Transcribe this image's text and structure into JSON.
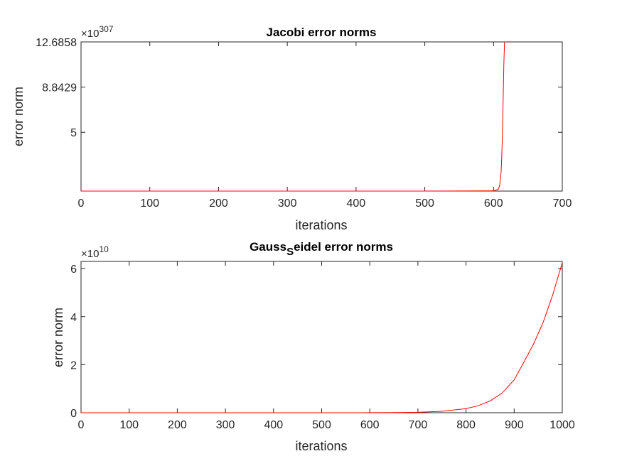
{
  "chart_data": [
    {
      "type": "line",
      "title": "Jacobi error norms",
      "xlabel": "iterations",
      "ylabel": "error norm",
      "exponent_label": "×10",
      "exponent": "307",
      "xlim": [
        0,
        700
      ],
      "ylim": [
        0,
        12.6858
      ],
      "x_ticks": [
        0,
        100,
        200,
        300,
        400,
        500,
        600,
        700
      ],
      "y_ticks": [
        5,
        8.8429,
        12.6858
      ],
      "y_tick_labels": [
        "5",
        "8.8429",
        "12.6858"
      ],
      "grid": false,
      "line_color": "#ff0000",
      "series": [
        {
          "x": [
            0,
            100,
            200,
            300,
            400,
            500,
            600,
            607,
            609,
            611,
            612,
            613,
            614,
            615,
            616
          ],
          "y": [
            0,
            0,
            0,
            0,
            0,
            0,
            0.02,
            0.15,
            0.5,
            1.6,
            3.0,
            5.0,
            7.8,
            10.8,
            12.6858
          ]
        }
      ]
    },
    {
      "type": "line",
      "title_main": "Gauss",
      "title_sub": "S",
      "title_rest": "eidel error norms",
      "xlabel": "iterations",
      "ylabel": "error norm",
      "exponent_label": "×10",
      "exponent": "10",
      "xlim": [
        0,
        1000
      ],
      "ylim": [
        0,
        6.3
      ],
      "x_ticks": [
        0,
        100,
        200,
        300,
        400,
        500,
        600,
        700,
        800,
        900,
        1000
      ],
      "y_ticks": [
        0,
        2,
        4,
        6
      ],
      "y_tick_labels": [
        "0",
        "2",
        "4",
        "6"
      ],
      "grid": false,
      "line_color": "#ff0000",
      "series": [
        {
          "x": [
            0,
            100,
            200,
            300,
            400,
            500,
            600,
            650,
            700,
            750,
            800,
            825,
            850,
            875,
            900,
            920,
            940,
            960,
            980,
            1000
          ],
          "y": [
            0,
            0,
            0,
            0,
            0,
            0.0002,
            0.002,
            0.007,
            0.02,
            0.06,
            0.17,
            0.29,
            0.49,
            0.82,
            1.37,
            2.1,
            2.85,
            3.75,
            4.9,
            6.25
          ]
        }
      ]
    }
  ]
}
